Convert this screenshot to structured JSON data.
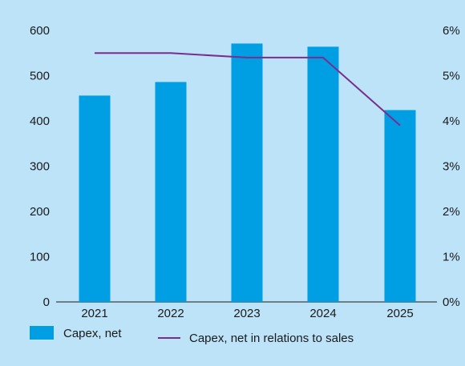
{
  "chart_data": {
    "type": "bar",
    "categories": [
      "2021",
      "2022",
      "2023",
      "2024",
      "2025"
    ],
    "series": [
      {
        "name": "Capex, net",
        "type": "bar",
        "axis": "left",
        "values": [
          456,
          486,
          571,
          564,
          424
        ],
        "color": "#009ee3"
      },
      {
        "name": "Capex, net in relations to sales",
        "type": "line",
        "axis": "right",
        "values": [
          5.5,
          5.5,
          5.4,
          5.4,
          3.9
        ],
        "color": "#7b2d8e"
      }
    ],
    "y_left": {
      "min": 0,
      "max": 600,
      "ticks": [
        "0",
        "100",
        "200",
        "300",
        "400",
        "500",
        "600"
      ]
    },
    "y_right": {
      "min": 0,
      "max": 6,
      "ticks": [
        "0%",
        "1%",
        "2%",
        "3%",
        "4%",
        "5%",
        "6%"
      ]
    },
    "grid": false,
    "legend_position": "bottom-left"
  }
}
